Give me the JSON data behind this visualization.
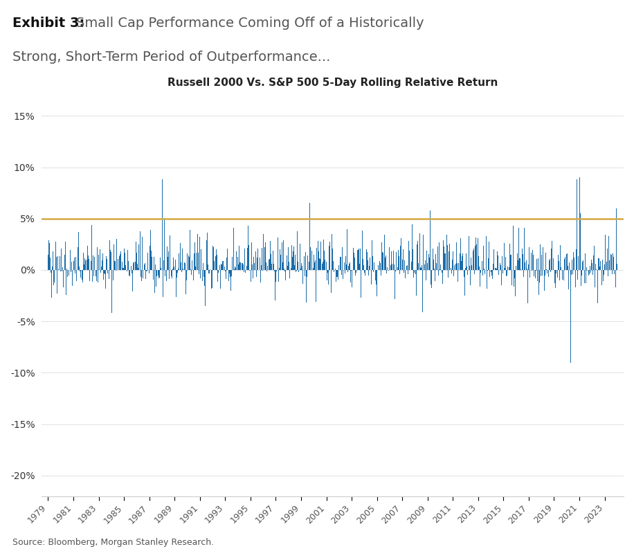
{
  "title_exhibit": "Exhibit 3:",
  "title_main": "Small Cap Performance Coming Off of a Historically\nStrong, Short-Term Period of Outperformance...",
  "subtitle": "Russell 2000 Vs. S&P 500 5-Day Rolling Relative Return",
  "source": "Source: Bloomberg, Morgan Stanley Research.",
  "bar_color": "#1b6ca8",
  "hline_value": 5.0,
  "hline_color": "#d4a843",
  "ylim": [
    -22,
    17
  ],
  "yticks": [
    -20,
    -15,
    -10,
    -5,
    0,
    5,
    10,
    15
  ],
  "start_year": 1979,
  "end_year": 2024,
  "background_color": "#ffffff",
  "seed": 42
}
